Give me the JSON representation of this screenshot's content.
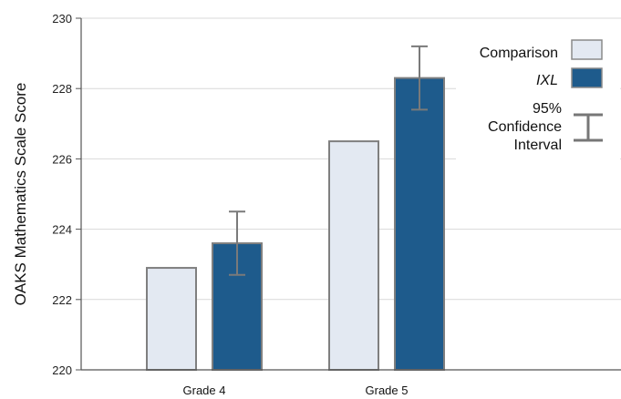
{
  "chart_data": {
    "type": "bar",
    "title": "",
    "xlabel": "",
    "ylabel": "OAKS Mathematics Scale Score",
    "ylim": [
      220,
      230
    ],
    "yticks": [
      220,
      222,
      224,
      226,
      228,
      230
    ],
    "grid": true,
    "categories": [
      "Grade 4",
      "Grade 5"
    ],
    "series": [
      {
        "name": "Comparison",
        "color": "#e3e9f2",
        "values": [
          222.9,
          226.5
        ]
      },
      {
        "name": "IXL",
        "color": "#1e5b8c",
        "values": [
          223.6,
          228.3
        ],
        "error_bars": [
          [
            222.7,
            224.5
          ],
          [
            227.4,
            229.2
          ]
        ]
      }
    ],
    "legend": {
      "position": "top-right",
      "items": [
        "Comparison",
        "IXL"
      ],
      "ci_label_lines": [
        "95%",
        "Confidence",
        "Interval"
      ]
    }
  }
}
